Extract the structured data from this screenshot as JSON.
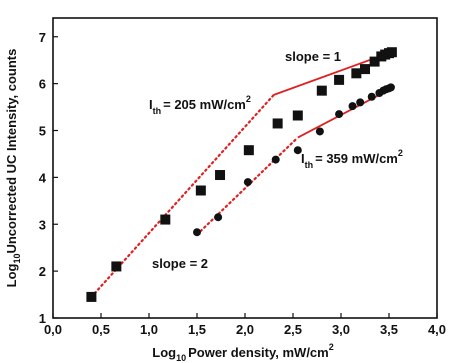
{
  "chart_data": {
    "type": "scatter",
    "title": "",
    "xlabel": {
      "prefix": "Log",
      "sub": "10",
      "rest": "Power density, mW/cm",
      "sup": "2"
    },
    "ylabel": {
      "prefix": "Log",
      "sub": "10",
      "rest": "Uncorrected UC Intensity, counts"
    },
    "xlim": [
      0.0,
      4.0
    ],
    "ylim": [
      1,
      7.4
    ],
    "x_ticks": [
      "0,0",
      "0,5",
      "1,0",
      "1,5",
      "2,0",
      "2,5",
      "3,0",
      "3,5",
      "4,0"
    ],
    "x_tick_values": [
      0.0,
      0.5,
      1.0,
      1.5,
      2.0,
      2.5,
      3.0,
      3.5,
      4.0
    ],
    "y_ticks": [
      "1",
      "2",
      "3",
      "4",
      "5",
      "6",
      "7"
    ],
    "y_tick_values": [
      1,
      2,
      3,
      4,
      5,
      6,
      7
    ],
    "grid": false,
    "series": [
      {
        "marker": "square",
        "color": "#111111",
        "x": [
          0.4,
          0.66,
          1.17,
          1.54,
          1.74,
          2.04,
          2.34,
          2.55,
          2.8,
          2.98,
          3.16,
          3.25,
          3.35,
          3.42,
          3.46,
          3.5,
          3.53
        ],
        "y": [
          1.45,
          2.1,
          3.1,
          3.72,
          4.05,
          4.58,
          5.15,
          5.32,
          5.85,
          6.08,
          6.22,
          6.31,
          6.47,
          6.58,
          6.62,
          6.65,
          6.67
        ]
      },
      {
        "marker": "circle",
        "color": "#111111",
        "x": [
          1.5,
          1.72,
          2.03,
          2.32,
          2.55,
          2.78,
          2.98,
          3.12,
          3.2,
          3.32,
          3.4,
          3.44,
          3.47,
          3.5,
          3.52
        ],
        "y": [
          2.83,
          3.15,
          3.9,
          4.38,
          4.58,
          4.98,
          5.35,
          5.52,
          5.6,
          5.72,
          5.8,
          5.85,
          5.88,
          5.9,
          5.92
        ]
      }
    ],
    "fit_lines": [
      {
        "style": "solid",
        "color": "#e02020",
        "x": [
          2.3,
          3.55
        ],
        "y": [
          5.76,
          6.69
        ]
      },
      {
        "style": "solid",
        "color": "#e02020",
        "x": [
          2.55,
          3.55
        ],
        "y": [
          4.85,
          5.92
        ]
      },
      {
        "style": "dotted",
        "color": "#e02020",
        "x": [
          0.4,
          2.3
        ],
        "y": [
          1.45,
          5.76
        ]
      },
      {
        "style": "dotted",
        "color": "#e02020",
        "x": [
          1.5,
          2.55
        ],
        "y": [
          2.78,
          4.85
        ]
      }
    ],
    "annotations": [
      {
        "id": "slope1",
        "text": "slope = 1"
      },
      {
        "id": "ith1",
        "prefix": "I",
        "sub": "th",
        "text": "= 205 mW/cm",
        "sup": "2"
      },
      {
        "id": "ith2",
        "prefix": "I",
        "sub": "th",
        "text": "= 359 mW/cm",
        "sup": "2"
      },
      {
        "id": "slope2",
        "text": "slope = 2"
      }
    ]
  }
}
